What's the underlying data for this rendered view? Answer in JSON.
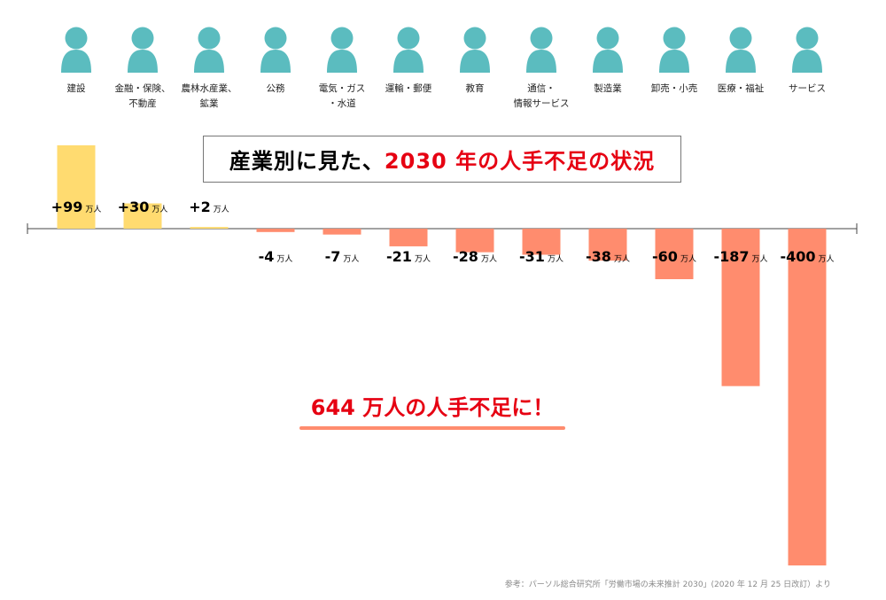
{
  "title": {
    "prefix": "産業別に見た、",
    "accent": "2030 年の人手不足の状況"
  },
  "callout": "644 万人の人手不足に！",
  "source": "参考：パーソル総合研究所「労働市場の未来推計 2030」(2020 年 12 月 25 日改訂）より",
  "unit": "万人",
  "colors": {
    "icon": "#5bbcbf",
    "surplus": "#ffdb70",
    "shortage": "#ff8c6e",
    "accent": "#e60012"
  },
  "chart_data": {
    "type": "bar",
    "categories": [
      "建設",
      "金融・保険、\n不動産",
      "農林水産業、\n鉱業",
      "公務",
      "電気・ガス\n・水道",
      "運輸・郵便",
      "教育",
      "通信・\n情報サービス",
      "製造業",
      "卸売・小売",
      "医療・福祉",
      "サービス"
    ],
    "values": [
      99,
      30,
      2,
      -4,
      -7,
      -21,
      -28,
      -31,
      -38,
      -60,
      -187,
      -400
    ],
    "value_labels": [
      "+99",
      "+30",
      "+2",
      "-4",
      "-7",
      "-21",
      "-28",
      "-31",
      "-38",
      "-60",
      "-187",
      "-400"
    ],
    "unit": "万人",
    "ylim": [
      -400,
      99
    ],
    "grid": false
  }
}
